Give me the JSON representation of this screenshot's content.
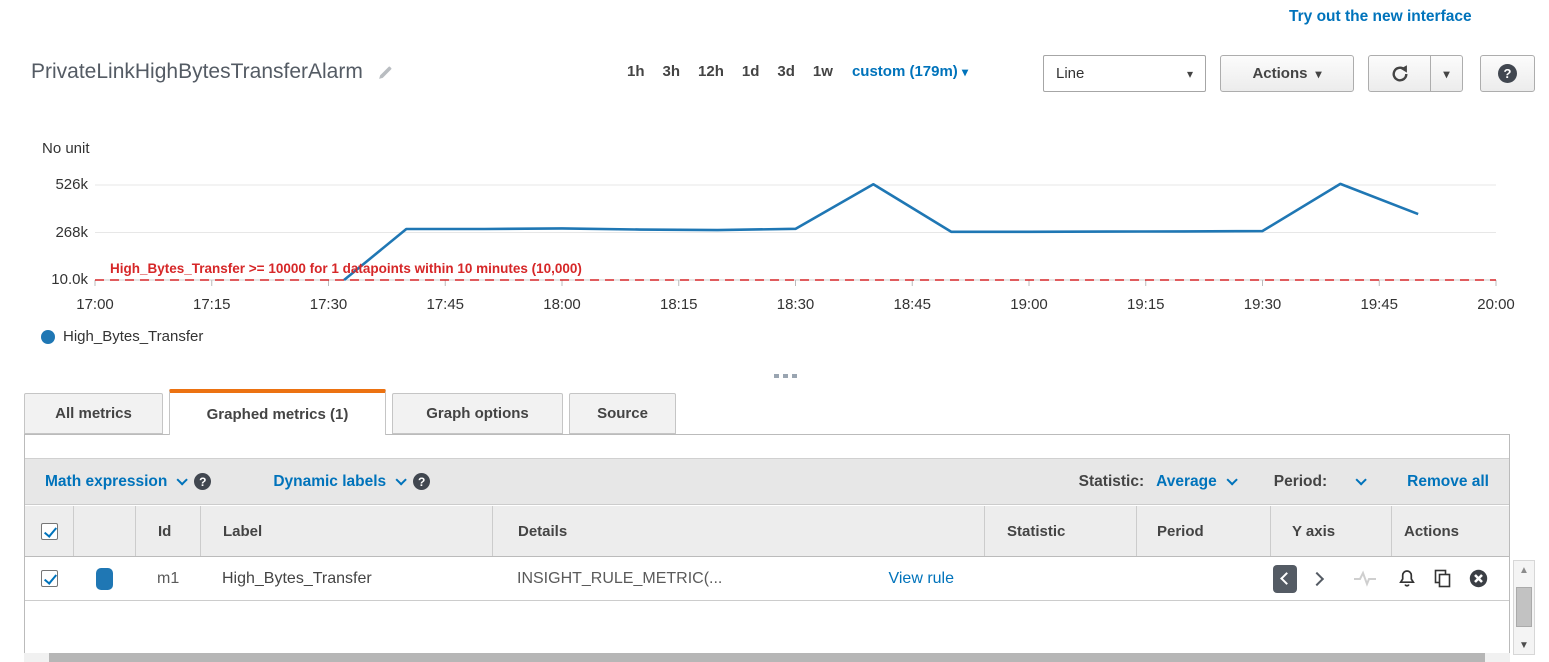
{
  "page": {
    "try_new_interface": "Try out the new interface"
  },
  "header": {
    "title": "PrivateLinkHighBytesTransferAlarm",
    "ranges": [
      "1h",
      "3h",
      "12h",
      "1d",
      "3d",
      "1w"
    ],
    "custom_range": "custom (179m)",
    "chart_type_value": "Line",
    "actions_label": "Actions"
  },
  "icons": {
    "help_glyph": "?",
    "up_arrow": "▲",
    "down_arrow": "▼",
    "caret": "▾"
  },
  "chart_data": {
    "type": "line",
    "unit_label": "No unit",
    "x_ticks": [
      "17:00",
      "17:15",
      "17:30",
      "17:45",
      "18:00",
      "18:15",
      "18:30",
      "18:45",
      "19:00",
      "19:15",
      "19:30",
      "19:45",
      "20:00"
    ],
    "y_ticks": [
      {
        "label": "526k",
        "value": 526000
      },
      {
        "label": "268k",
        "value": 268000
      },
      {
        "label": "10.0k",
        "value": 10000
      }
    ],
    "ylim": [
      0,
      560000
    ],
    "x_range": [
      "17:00",
      "20:00"
    ],
    "grid": true,
    "legend_position": "bottom-left",
    "series": [
      {
        "name": "High_Bytes_Transfer",
        "color": "#1f77b4",
        "points": [
          [
            "17:32",
            10000
          ],
          [
            "17:40",
            287000
          ],
          [
            "17:50",
            287000
          ],
          [
            "18:00",
            290000
          ],
          [
            "18:10",
            284000
          ],
          [
            "18:20",
            281000
          ],
          [
            "18:30",
            288000
          ],
          [
            "18:40",
            530000
          ],
          [
            "18:50",
            272000
          ],
          [
            "19:00",
            272000
          ],
          [
            "19:10",
            273000
          ],
          [
            "19:20",
            274000
          ],
          [
            "19:30",
            276000
          ],
          [
            "19:40",
            532000
          ],
          [
            "19:50",
            368000
          ]
        ]
      }
    ],
    "threshold": {
      "label": "High_Bytes_Transfer >= 10000 for 1 datapoints within 10 minutes (10,000)",
      "value": 10000,
      "color": "#d62728"
    }
  },
  "legend": {
    "label": "High_Bytes_Transfer"
  },
  "tabs": {
    "items": [
      {
        "label": "All metrics",
        "active": false
      },
      {
        "label": "Graphed metrics (1)",
        "active": true
      },
      {
        "label": "Graph options",
        "active": false
      },
      {
        "label": "Source",
        "active": false
      }
    ]
  },
  "toolbar": {
    "math_expression": "Math expression",
    "dynamic_labels": "Dynamic labels",
    "statistic_label": "Statistic:",
    "statistic_value": "Average",
    "period_label": "Period:",
    "remove_all": "Remove all"
  },
  "table": {
    "columns": {
      "id": "Id",
      "label": "Label",
      "details": "Details",
      "statistic": "Statistic",
      "period": "Period",
      "y_axis": "Y axis",
      "actions": "Actions"
    },
    "select_all_checked": true,
    "rows": [
      {
        "checked": true,
        "color": "#1f77b4",
        "id": "m1",
        "label": "High_Bytes_Transfer",
        "details": "INSIGHT_RULE_METRIC(...",
        "details_link": "View rule"
      }
    ]
  }
}
